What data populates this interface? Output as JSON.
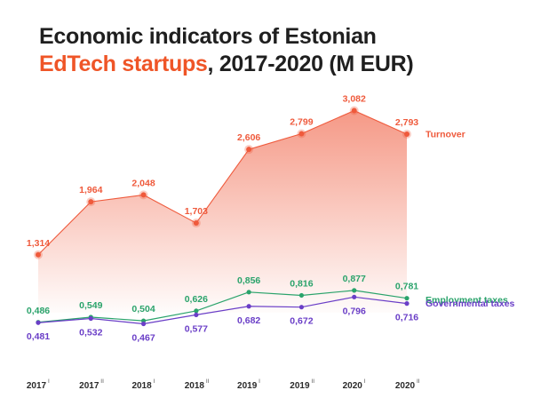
{
  "title": {
    "line1": "Economic indicators of Estonian",
    "accent": "EdTech startups",
    "line2_rest": ", 2017-2020 (M EUR)"
  },
  "colors": {
    "turnover": "#ef5a3c",
    "employment": "#2aa36b",
    "governmental": "#6a3ec7",
    "title_accent": "#ef5527"
  },
  "chart_data": {
    "type": "line",
    "title": "Economic indicators of Estonian EdTech startups, 2017-2020 (M EUR)",
    "categories": [
      {
        "year": "2017",
        "half": "I"
      },
      {
        "year": "2017",
        "half": "II"
      },
      {
        "year": "2018",
        "half": "I"
      },
      {
        "year": "2018",
        "half": "II"
      },
      {
        "year": "2019",
        "half": "I"
      },
      {
        "year": "2019",
        "half": "II"
      },
      {
        "year": "2020",
        "half": "I"
      },
      {
        "year": "2020",
        "half": "II"
      }
    ],
    "series": [
      {
        "name": "Turnover",
        "key": "turnover",
        "values": [
          1.314,
          1.964,
          2.048,
          1.703,
          2.606,
          2.799,
          3.082,
          2.793
        ],
        "labels": [
          "1,314",
          "1,964",
          "2,048",
          "1,703",
          "2,606",
          "2,799",
          "3,082",
          "2,793"
        ]
      },
      {
        "name": "Employment taxes",
        "key": "employment",
        "values": [
          0.486,
          0.549,
          0.504,
          0.626,
          0.856,
          0.816,
          0.877,
          0.781
        ],
        "labels": [
          "0,486",
          "0,549",
          "0,504",
          "0,626",
          "0,856",
          "0,816",
          "0,877",
          "0,781"
        ]
      },
      {
        "name": "Governmental taxes",
        "key": "governmental",
        "values": [
          0.481,
          0.532,
          0.467,
          0.577,
          0.682,
          0.672,
          0.796,
          0.716
        ],
        "labels": [
          "0,481",
          "0,532",
          "0,467",
          "0,577",
          "0,682",
          "0,672",
          "0,796",
          "0,716"
        ]
      }
    ],
    "grid": false,
    "legend": "right, at end of each line"
  }
}
